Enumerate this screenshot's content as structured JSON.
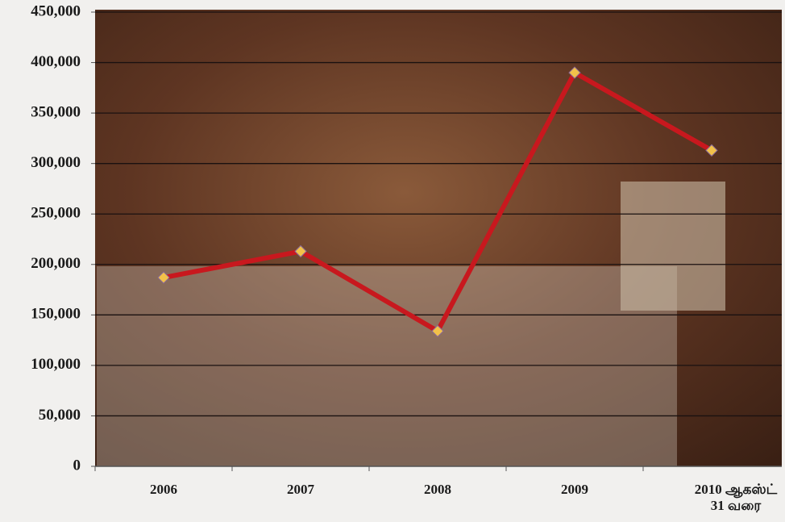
{
  "chart_data": {
    "type": "line",
    "categories": [
      "2006",
      "2007",
      "2008",
      "2009",
      "2010 ஆகஸ்ட் 31 வரை"
    ],
    "values": [
      187000,
      213000,
      134000,
      390000,
      313000
    ],
    "color": "#c8181e",
    "marker_color": "#f2c14a",
    "ylim": [
      0,
      450000
    ],
    "yticks": [
      0,
      {
        "value": 50000,
        "label": "50,000"
      },
      {
        "value": 100000,
        "label": "100,000"
      },
      {
        "value": 150000,
        "label": "150,000"
      },
      {
        "value": 200000,
        "label": "200,000"
      },
      {
        "value": 250000,
        "label": "250,000"
      },
      {
        "value": 300000,
        "label": "300,000"
      },
      {
        "value": 350000,
        "label": "350,000"
      },
      {
        "value": 400000,
        "label": "400,000"
      },
      {
        "value": 450000,
        "label": "450,000"
      }
    ],
    "grid": true
  }
}
